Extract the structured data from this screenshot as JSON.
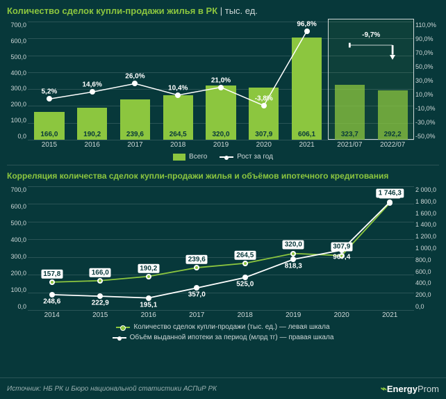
{
  "chart1": {
    "title": "Количество сделок купли-продажи жилья в РК",
    "title_sub": " | тыс. ед.",
    "title_fontsize": 13,
    "type": "bar+line",
    "categories": [
      "2015",
      "2016",
      "2017",
      "2018",
      "2019",
      "2020",
      "2021",
      "2021/07",
      "2022/07"
    ],
    "bar_values": [
      166.0,
      190.2,
      239.6,
      264.5,
      320.0,
      307.9,
      606.1,
      323.7,
      292.2
    ],
    "bar_labels": [
      "166,0",
      "190,2",
      "239,6",
      "264,5",
      "320,0",
      "307,9",
      "606,1",
      "323,7",
      "292,2"
    ],
    "bar_color": "#8cc63f",
    "highlight_indices": [
      7,
      8
    ],
    "line_values_pct": [
      5.2,
      14.6,
      26.0,
      10.4,
      21.0,
      -3.8,
      96.8
    ],
    "line_labels": [
      "5,2%",
      "14,6%",
      "26,0%",
      "10,4%",
      "21,0%",
      "-3,8%",
      "96,8%"
    ],
    "line_color": "#ffffff",
    "annotation_text": "-9,7%",
    "y_left": {
      "min": 0,
      "max": 700,
      "step": 100,
      "ticks": [
        "0,0",
        "100,0",
        "200,0",
        "300,0",
        "400,0",
        "500,0",
        "600,0",
        "700,0"
      ]
    },
    "y_right": {
      "min": -50,
      "max": 110,
      "step": 20,
      "ticks": [
        "-50,0%",
        "-30,0%",
        "-10,0%",
        "10,0%",
        "30,0%",
        "50,0%",
        "70,0%",
        "90,0%",
        "110,0%"
      ]
    },
    "legend": {
      "bar": "Всего",
      "line": "Рост за год"
    },
    "background_color": "#07383a",
    "grid_color": "#2a5456"
  },
  "chart2": {
    "title": "Корреляция количества сделок купли-продажи жилья и объёмов ипотечного кредитования",
    "title_fontsize": 12,
    "type": "dual-line",
    "categories": [
      "2014",
      "2015",
      "2016",
      "2017",
      "2018",
      "2019",
      "2020",
      "2021"
    ],
    "series_left": {
      "values": [
        157.8,
        166.0,
        190.2,
        239.6,
        264.5,
        320.0,
        307.9,
        606.1
      ],
      "labels": [
        "157,8",
        "166,0",
        "190,2",
        "239,6",
        "264,5",
        "320,0",
        "307,9",
        "606,1"
      ],
      "color": "#8cc63f",
      "marker": "circle",
      "line_width": 2
    },
    "series_right": {
      "values": [
        248.6,
        222.9,
        195.1,
        357.0,
        525.0,
        818.3,
        967.4,
        1746.3
      ],
      "labels": [
        "248,6",
        "222,9",
        "195,1",
        "357,0",
        "525,0",
        "818,3",
        "967,4",
        "1 746,3"
      ],
      "color": "#ffffff",
      "marker": "circle",
      "line_width": 2
    },
    "y_left": {
      "min": 0,
      "max": 700,
      "step": 100,
      "ticks": [
        "0,0",
        "100,0",
        "200,0",
        "300,0",
        "400,0",
        "500,0",
        "600,0",
        "700,0"
      ]
    },
    "y_right": {
      "min": 0,
      "max": 2000,
      "step": 200,
      "ticks": [
        "0,0",
        "200,0",
        "400,0",
        "600,0",
        "800,0",
        "1 000,0",
        "1 200,0",
        "1 400,0",
        "1 600,0",
        "1 800,0",
        "2 000,0"
      ]
    },
    "legend": {
      "left": "Количество сделок купли-продажи (тыс. ед.) — левая шкала",
      "right": "Объём выданной ипотеки за период (млрд тг) — правая шкала"
    }
  },
  "footer": {
    "source": "Источник: НБ РК и Бюро национальной статистики АСПиР РК",
    "brand_prefix": "Energy",
    "brand_suffix": "Prom"
  },
  "colors": {
    "bg": "#07383a",
    "accent": "#8cc63f",
    "text": "#cfd8d8",
    "grid": "#2a5456",
    "line": "#ffffff"
  }
}
